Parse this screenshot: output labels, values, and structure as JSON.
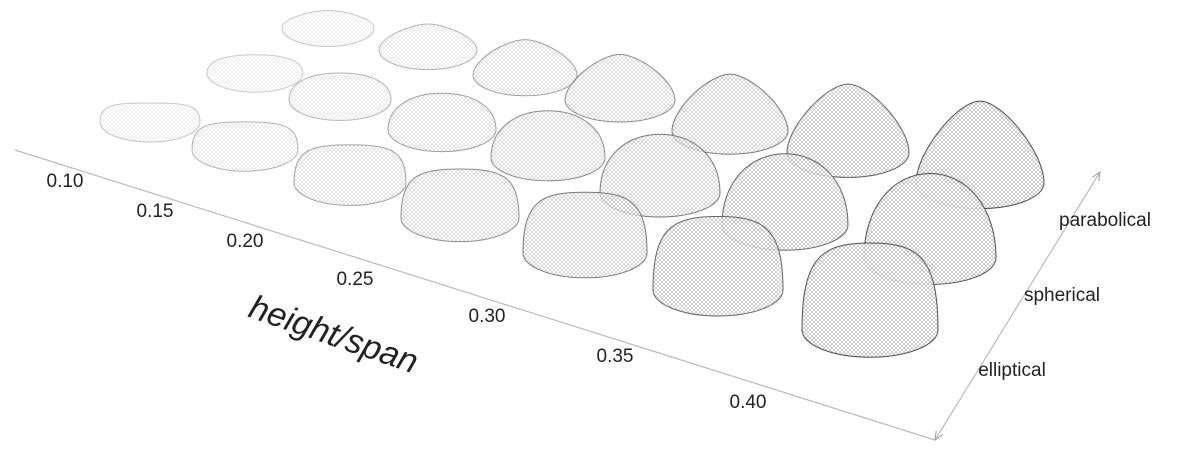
{
  "axis_title": "height/span",
  "height_span_labels": [
    "0.10",
    "0.15",
    "0.20",
    "0.25",
    "0.30",
    "0.35",
    "0.40"
  ],
  "shape_labels": [
    "parabolical",
    "spherical",
    "elliptical"
  ]
}
